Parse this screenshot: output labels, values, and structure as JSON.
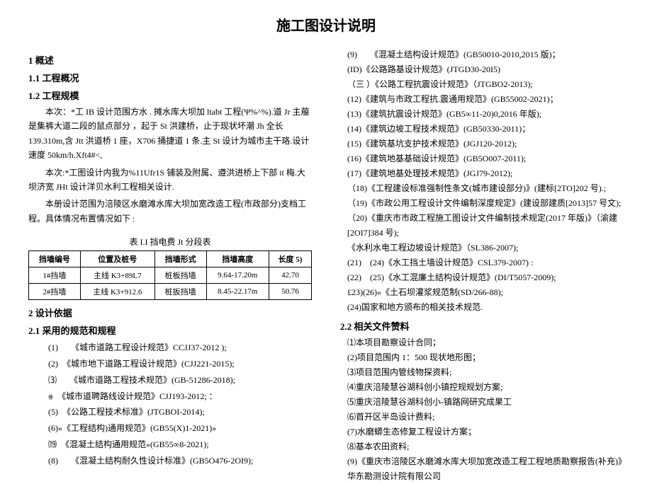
{
  "title": "施工图设计说明",
  "left": {
    "s1": "1 概述",
    "s11": "1.1  工程概况",
    "s12": "1.2  工程规模",
    "p1": "本次：*工 IB 设计范围方水 . 摊水库大坝加 ltabt 工程(Ψ%^%).道 Jr 主菔是集裤大道二段的鼠点部分 ，起于 St 洪建桥，止于现状坏潮 Jh 全长 139.310m,含 Jtt 洪道桥 1 座，X706 捅捷道 1 条.主 St 设计为城市主干珞.设计速度 50km/h.Xft4#<,",
    "p2": "本次:*工图设计内我为%11Ufr1S 铺装及附属、遵洪进桥上下部 it 梅.大坝济宽 JHt 设计洋贝水利工程相关设计.",
    "p3": "本册设计范围为涪陵区水磨滩水库大坝加宽改造工程(市政部分)支档工程。具体情况布置情况如下 :",
    "tcap": "表 I.I 挡电费 Jt 分段表",
    "th": [
      "挡墙编号",
      "位置及桩号",
      "挡墙形式",
      "挡墙高度",
      "长度 5)"
    ],
    "tr1": [
      "1#挡墙",
      "主线 K3+89L7",
      "桩板挡墙",
      "9.64-17.20m",
      "42.70"
    ],
    "tr2": [
      "2#挡墙",
      "主线 K3+912.6",
      "桩扳挡墙",
      "8.45-22.17m",
      "50.76"
    ],
    "s2": "2 设计依据",
    "s21": "2.1  采用的规范和规程",
    "li": [
      "(1)　　《城市道路工程设计规范》CCJJ37-2012 );",
      "(2)　《城市地下道路工程设计规范》(CJJ221-2015);",
      "⑶　　《城市道路工程技术规范》(GB-51286-2018);",
      "⩷　《城市道聘路线设计规范》CJJ193-2012; ：",
      "(5)　《公路工程技术标准》(JTGBOI-2014);",
      "(6)«《工程结构)通用规范》(GB55(X)1-2021)»",
      "⒆　《混凝土结构通用规范»(GB55∞8-2021);",
      "(8)　　《混凝土结构耐久性设计标准》(GB5O476-2OI9);"
    ]
  },
  "right": {
    "items1": [
      "(9)　　《混凝土结构设计规范》(GB50010-2010,2015 版)；",
      "(ID)《公路路基设计规范》(JTGD30-20I5)",
      "（三 ）《公路工程抗震设计规范》（JTGBO2-2013);",
      "(12)《建筑与市政工程抗.震通用规范》(GB55002-2021)；",
      "(13)《建筑抗震设计规范》(GB5∞11-20)0,2016 年版);",
      "(14)《建筑边坡工程技术规范》(GB50330-2011)；",
      "(15)《建筑基坑支护技术规范》(JGJ120-2012);",
      "(16)《建筑地基基础设计规范》(GB5O007-2011);",
      "(17)《建筑地基处理技术规范》(JGJ79-2012);",
      "（18)《工程建设标准强制性条文(城市建设部分)》(建标[2TO]202 号).;",
      "（19)《市政公用工程设计文件编制深度规定》(建设部建质[2013]57 号文);",
      "（20)《重庆市市政工程施工图设计文件编制技术规定(2017 年版)》（渝建[2OI7]384 号);",
      "《水利水电工程边坡设计规范》（SL386-2007);",
      "(21)　(24)《水工挡土墙设计规范》CSL379-2007) :",
      "(22)　(25)《水工混廉土结构设计规范》(DI/T5057-2009);",
      "£23)(26)«《土石坝灌浆规范制(SD/266-88);",
      "(24)国家和地方颁布的相关技术规范."
    ],
    "s22": "2.2   相关文件赞料",
    "items2": [
      "⑴本项目勘察设计合同；",
      "(2)项目范围内 1：500 现状地形图；",
      "⑶项目范围内管线物探资料;",
      "⑷重庆涪陵慧谷湖科创小镇控规规划方案;",
      "⑸重庆涪陵慧谷湖科创小-镇路网研究成果工",
      "⑹首开区半岛设计费料;",
      "(7)水磨蟒生态修复工程设计方案；",
      "⑻基本农田资料;",
      "(9)《重庆市涪陵区水磨滩水库大坝加宽改造工程工程地质勘察报告(补充)》华东勘测设计院有限公司"
    ]
  }
}
